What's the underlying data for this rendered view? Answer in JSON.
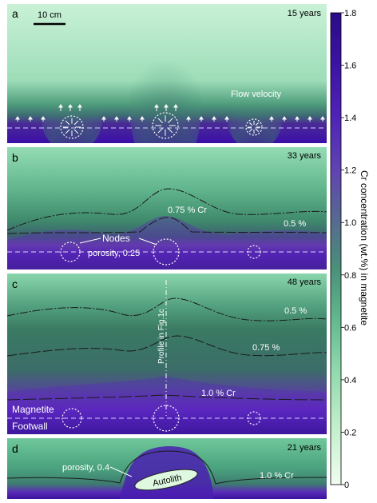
{
  "colorbar": {
    "title": "Cr concentration (wt.%) in magnetite",
    "ticks": [
      "1.8",
      "1.6",
      "1.4",
      "1.2",
      "1.0",
      "0.8",
      "0.6",
      "0.4",
      "0.2",
      "0"
    ],
    "min": 0,
    "max": 1.8,
    "colors": {
      "low": "#e9fbe6",
      "mid": "#3e9c73",
      "high": "#2a0c86"
    }
  },
  "panels": [
    {
      "letter": "a",
      "time": "15 years",
      "scale_bar": "10 cm",
      "annotation": "Flow velocity"
    },
    {
      "letter": "b",
      "time": "33 years",
      "contour_05": "0.5 %",
      "contour_075": "0.75 % Cr",
      "nodes_label": "Nodes",
      "porosity": "porosity, 0.25"
    },
    {
      "letter": "c",
      "time": "48 years",
      "contour_05": "0.5 %",
      "contour_075": "0.75 %",
      "contour_10": "1.0 % Cr",
      "profile": "Profile in Fig.1c",
      "magnetite": "Magnetite",
      "footwall": "Footwall"
    },
    {
      "letter": "d",
      "time": "21 years",
      "porosity": "porosity, 0.4",
      "autolith": "Autolith",
      "contour_10": "1.0 % Cr"
    }
  ]
}
